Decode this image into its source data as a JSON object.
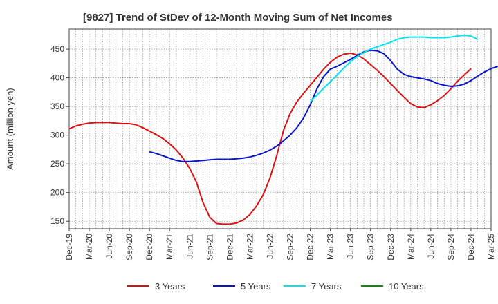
{
  "chart_data": {
    "type": "line",
    "title": "[9827]  Trend of StDev of 12-Month Moving Sum of Net Incomes",
    "xlabel": "",
    "ylabel": "Amount (million yen)",
    "ylim": [
      137,
      485
    ],
    "yticks": [
      150,
      200,
      250,
      300,
      350,
      400,
      450
    ],
    "x_ticks": [
      "Dec-19",
      "Mar-20",
      "Jun-20",
      "Sep-20",
      "Dec-20",
      "Mar-21",
      "Jun-21",
      "Sep-21",
      "Dec-21",
      "Mar-22",
      "Jun-22",
      "Sep-22",
      "Dec-22",
      "Mar-23",
      "Jun-23",
      "Sep-23",
      "Dec-23",
      "Mar-24",
      "Jun-24",
      "Sep-24",
      "Dec-24",
      "Mar-25"
    ],
    "grid": true,
    "legend_position": "bottom",
    "series": [
      {
        "name": "3 Years",
        "color": "#dd1111",
        "start_index": 0,
        "values": [
          311,
          316,
          319,
          321,
          322,
          322,
          322,
          321,
          320,
          320,
          318,
          313,
          307,
          301,
          294,
          285,
          274,
          260,
          242,
          218,
          182,
          157,
          146,
          145,
          145,
          147,
          152,
          162,
          177,
          197,
          226,
          265,
          308,
          338,
          358,
          373,
          387,
          401,
          415,
          427,
          436,
          441,
          443,
          440,
          433,
          423,
          413,
          402,
          390,
          378,
          366,
          355,
          349,
          348,
          353,
          360,
          369,
          381,
          394,
          405,
          416
        ]
      },
      {
        "name": "5 Years",
        "color": "#0a14c8",
        "start_index": 12,
        "values": [
          271,
          268,
          264,
          260,
          256,
          254,
          254,
          255,
          256,
          257,
          258,
          258,
          258,
          259,
          260,
          262,
          265,
          269,
          274,
          281,
          290,
          300,
          313,
          330,
          353,
          381,
          402,
          415,
          420,
          426,
          432,
          439,
          445,
          448,
          447,
          442,
          430,
          415,
          406,
          402,
          400,
          398,
          395,
          390,
          387,
          385,
          386,
          389,
          395,
          403,
          410,
          416,
          420
        ]
      },
      {
        "name": "7 Years",
        "color": "#00e5ee",
        "start_index": 36,
        "values": [
          358,
          370,
          382,
          393,
          405,
          417,
          428,
          437,
          444,
          450,
          454,
          458,
          462,
          467,
          470,
          471,
          471,
          471,
          470,
          470,
          470,
          471,
          473,
          474,
          473,
          467
        ]
      },
      {
        "name": "10 Years",
        "color": "#0c8a0c",
        "start_index": 0,
        "values": []
      }
    ]
  }
}
